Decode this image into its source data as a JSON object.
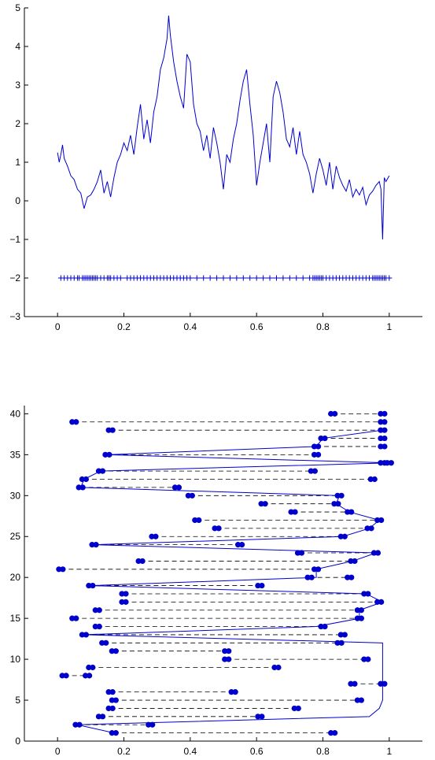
{
  "chart_data": [
    {
      "type": "line",
      "title": "",
      "xlabel": "",
      "ylabel": "",
      "xlim": [
        -0.1,
        1.1
      ],
      "ylim": [
        -3,
        5
      ],
      "xticks": [
        0,
        0.2,
        0.4,
        0.6,
        0.8,
        1
      ],
      "xtick_labels": [
        "0",
        "0.2",
        "0.4",
        "0.6",
        "0.8",
        "1"
      ],
      "yticks": [
        -3,
        -2,
        -1,
        0,
        1,
        2,
        3,
        4,
        5
      ],
      "ytick_labels": [
        "−3",
        "−2",
        "−1",
        "0",
        "1",
        "2",
        "3",
        "4",
        "5"
      ],
      "grid": false,
      "color": "#0000cc",
      "series": [
        {
          "style": "line",
          "x": [
            0.0,
            0.005,
            0.01,
            0.015,
            0.02,
            0.03,
            0.04,
            0.05,
            0.06,
            0.07,
            0.08,
            0.09,
            0.1,
            0.11,
            0.12,
            0.13,
            0.14,
            0.15,
            0.16,
            0.17,
            0.18,
            0.19,
            0.2,
            0.21,
            0.22,
            0.23,
            0.24,
            0.25,
            0.26,
            0.27,
            0.28,
            0.29,
            0.3,
            0.31,
            0.32,
            0.33,
            0.335,
            0.34,
            0.35,
            0.36,
            0.37,
            0.38,
            0.39,
            0.4,
            0.41,
            0.42,
            0.43,
            0.44,
            0.45,
            0.46,
            0.47,
            0.48,
            0.49,
            0.5,
            0.51,
            0.52,
            0.53,
            0.54,
            0.55,
            0.56,
            0.57,
            0.58,
            0.59,
            0.6,
            0.61,
            0.62,
            0.63,
            0.64,
            0.65,
            0.66,
            0.67,
            0.68,
            0.69,
            0.7,
            0.71,
            0.72,
            0.73,
            0.74,
            0.75,
            0.76,
            0.77,
            0.78,
            0.79,
            0.8,
            0.81,
            0.82,
            0.83,
            0.84,
            0.85,
            0.86,
            0.87,
            0.88,
            0.89,
            0.9,
            0.91,
            0.92,
            0.93,
            0.94,
            0.95,
            0.96,
            0.97,
            0.975,
            0.98,
            0.985,
            0.99,
            1.0
          ],
          "y": [
            1.25,
            1.0,
            1.2,
            1.45,
            1.1,
            0.9,
            0.65,
            0.55,
            0.3,
            0.2,
            -0.2,
            0.1,
            0.15,
            0.3,
            0.5,
            0.8,
            0.2,
            0.5,
            0.1,
            0.6,
            1.0,
            1.2,
            1.5,
            1.3,
            1.7,
            1.2,
            1.9,
            2.5,
            1.6,
            2.1,
            1.5,
            2.3,
            2.7,
            3.4,
            3.7,
            4.2,
            4.8,
            4.3,
            3.6,
            3.1,
            2.7,
            2.4,
            3.8,
            3.6,
            2.5,
            2.0,
            1.8,
            1.3,
            1.7,
            1.1,
            1.9,
            1.5,
            1.0,
            0.3,
            1.2,
            1.0,
            1.6,
            2.0,
            2.6,
            3.1,
            3.4,
            2.5,
            1.7,
            0.4,
            1.0,
            1.5,
            2.0,
            1.0,
            2.7,
            3.1,
            2.8,
            2.3,
            1.6,
            1.4,
            1.9,
            1.2,
            1.8,
            1.2,
            1.0,
            0.7,
            0.2,
            0.7,
            1.1,
            0.8,
            0.4,
            1.0,
            0.3,
            0.9,
            0.6,
            0.4,
            0.25,
            0.55,
            0.1,
            0.3,
            0.15,
            0.35,
            -0.1,
            0.15,
            0.25,
            0.4,
            0.5,
            0.3,
            -1.0,
            0.6,
            0.5,
            0.65
          ]
        },
        {
          "style": "markers-plus",
          "y_const": -2,
          "x": [
            0.01,
            0.02,
            0.03,
            0.04,
            0.05,
            0.06,
            0.065,
            0.075,
            0.08,
            0.085,
            0.09,
            0.095,
            0.1,
            0.105,
            0.11,
            0.115,
            0.12,
            0.13,
            0.14,
            0.15,
            0.155,
            0.16,
            0.17,
            0.18,
            0.19,
            0.21,
            0.22,
            0.23,
            0.24,
            0.25,
            0.26,
            0.27,
            0.28,
            0.29,
            0.3,
            0.31,
            0.32,
            0.33,
            0.34,
            0.35,
            0.36,
            0.37,
            0.38,
            0.39,
            0.4,
            0.42,
            0.44,
            0.46,
            0.48,
            0.5,
            0.52,
            0.54,
            0.56,
            0.58,
            0.6,
            0.62,
            0.64,
            0.66,
            0.68,
            0.7,
            0.72,
            0.74,
            0.76,
            0.77,
            0.775,
            0.78,
            0.785,
            0.79,
            0.795,
            0.8,
            0.81,
            0.82,
            0.83,
            0.84,
            0.85,
            0.86,
            0.87,
            0.88,
            0.89,
            0.9,
            0.91,
            0.92,
            0.93,
            0.94,
            0.95,
            0.955,
            0.96,
            0.965,
            0.97,
            0.975,
            0.98,
            0.985,
            0.99,
            1.0
          ]
        }
      ]
    },
    {
      "type": "line",
      "title": "",
      "xlabel": "",
      "ylabel": "",
      "xlim": [
        -0.1,
        1.1
      ],
      "ylim": [
        0,
        41
      ],
      "xticks": [
        0,
        0.2,
        0.4,
        0.6,
        0.8,
        1
      ],
      "xtick_labels": [
        "0",
        "0.2",
        "0.4",
        "0.6",
        "0.8",
        "1"
      ],
      "yticks": [
        0,
        5,
        10,
        15,
        20,
        25,
        30,
        35,
        40
      ],
      "ytick_labels": [
        "0",
        "5",
        "10",
        "15",
        "20",
        "25",
        "30",
        "35",
        "40"
      ],
      "grid": false,
      "color": "#0000cc",
      "intervals": [
        {
          "y": 1,
          "a": 0.17,
          "b": 0.83
        },
        {
          "y": 2,
          "a": 0.06,
          "b": 0.28
        },
        {
          "y": 3,
          "a": 0.13,
          "b": 0.61
        },
        {
          "y": 4,
          "a": 0.16,
          "b": 0.72
        },
        {
          "y": 5,
          "a": 0.17,
          "b": 0.91
        },
        {
          "y": 6,
          "a": 0.16,
          "b": 0.53
        },
        {
          "y": 7,
          "a": 0.89,
          "b": 0.98
        },
        {
          "y": 8,
          "a": 0.02,
          "b": 0.09
        },
        {
          "y": 9,
          "a": 0.1,
          "b": 0.66
        },
        {
          "y": 10,
          "a": 0.51,
          "b": 0.93
        },
        {
          "y": 11,
          "a": 0.17,
          "b": 0.51
        },
        {
          "y": 12,
          "a": 0.14,
          "b": 0.85
        },
        {
          "y": 13,
          "a": 0.08,
          "b": 0.86
        },
        {
          "y": 14,
          "a": 0.12,
          "b": 0.8
        },
        {
          "y": 15,
          "a": 0.05,
          "b": 0.91
        },
        {
          "y": 16,
          "a": 0.12,
          "b": 0.91
        },
        {
          "y": 17,
          "a": 0.2,
          "b": 0.97
        },
        {
          "y": 18,
          "a": 0.2,
          "b": 0.93
        },
        {
          "y": 19,
          "a": 0.1,
          "b": 0.61
        },
        {
          "y": 20,
          "a": 0.76,
          "b": 0.88
        },
        {
          "y": 21,
          "a": 0.01,
          "b": 0.78
        },
        {
          "y": 22,
          "a": 0.25,
          "b": 0.89
        },
        {
          "y": 23,
          "a": 0.73,
          "b": 0.96
        },
        {
          "y": 24,
          "a": 0.11,
          "b": 0.55
        },
        {
          "y": 25,
          "a": 0.29,
          "b": 0.86
        },
        {
          "y": 26,
          "a": 0.48,
          "b": 0.94
        },
        {
          "y": 27,
          "a": 0.42,
          "b": 0.97
        },
        {
          "y": 28,
          "a": 0.71,
          "b": 0.88
        },
        {
          "y": 29,
          "a": 0.62,
          "b": 0.84
        },
        {
          "y": 30,
          "a": 0.4,
          "b": 0.85
        },
        {
          "y": 31,
          "a": 0.07,
          "b": 0.36
        },
        {
          "y": 32,
          "a": 0.08,
          "b": 0.95
        },
        {
          "y": 33,
          "a": 0.13,
          "b": 0.77
        },
        {
          "y": 34,
          "a": 0.98,
          "b": 1.0
        },
        {
          "y": 35,
          "a": 0.15,
          "b": 0.78
        },
        {
          "y": 36,
          "a": 0.78,
          "b": 0.98
        },
        {
          "y": 37,
          "a": 0.8,
          "b": 0.98
        },
        {
          "y": 38,
          "a": 0.16,
          "b": 0.98
        },
        {
          "y": 39,
          "a": 0.05,
          "b": 0.98
        },
        {
          "y": 40,
          "a": 0.83,
          "b": 0.98
        }
      ],
      "path": {
        "y": [
          1,
          2,
          3,
          4,
          5,
          6,
          7,
          8,
          9,
          10,
          11,
          12,
          13,
          14,
          15,
          16,
          17,
          18,
          19,
          20,
          21,
          22,
          23,
          24,
          25,
          26,
          27,
          28,
          29,
          30,
          31,
          32,
          33,
          34,
          35,
          36,
          37,
          38
        ],
        "x": [
          0.17,
          0.06,
          0.94,
          0.97,
          0.98,
          0.98,
          0.98,
          0.98,
          0.98,
          0.98,
          0.98,
          0.98,
          0.08,
          0.78,
          0.91,
          0.91,
          0.98,
          0.93,
          0.1,
          0.78,
          0.78,
          0.89,
          0.96,
          0.11,
          0.86,
          0.94,
          0.97,
          0.88,
          0.84,
          0.85,
          0.07,
          0.08,
          0.13,
          1.0,
          0.15,
          0.78,
          0.8,
          0.98
        ]
      }
    }
  ]
}
